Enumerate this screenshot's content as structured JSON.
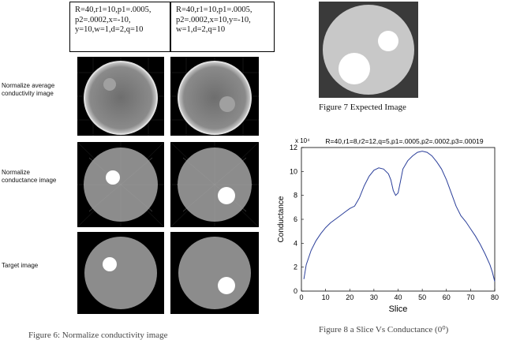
{
  "params": [
    "R=40,r1=10,p1=.0005,\np2=.0002,x=-10,\ny=10,w=1,d=2,q=10",
    "R=40,r1=10,p1=.0005,\np2=.0002,x=10,y=-10,\nw=1,d=2,q=10"
  ],
  "row_labels": [
    "Normalize average\nconductivity image",
    "Normalize\nconductance image",
    "Target image"
  ],
  "caption_fig6": "Figure 6: Normalize conductivity image",
  "caption_fig7": "Figure 7 Expected Image",
  "caption_fig8": "Figure 8 a Slice Vs Conductance (0⁰)",
  "chart_data": {
    "type": "line",
    "title": "R=40,r1=8,r2=12,q=5,p1=.0005,p2=.0002,p3=.00019",
    "xlabel": "Slice",
    "ylabel": "Conductance",
    "y_multiplier": "x 10⁴",
    "xlim": [
      0,
      80
    ],
    "ylim": [
      0,
      12
    ],
    "xticks": [
      "0",
      "10",
      "20",
      "30",
      "40",
      "50",
      "60",
      "70",
      "80"
    ],
    "yticks": [
      "0",
      "2",
      "4",
      "6",
      "8",
      "10",
      "12"
    ],
    "grid": false,
    "series": [
      {
        "color": "#2b3f9a",
        "x": [
          1,
          2,
          4,
          6,
          8,
          10,
          12,
          14,
          16,
          18,
          20,
          22,
          24,
          26,
          28,
          30,
          32,
          34,
          36,
          37,
          38,
          39,
          40,
          41,
          42,
          44,
          46,
          48,
          50,
          52,
          54,
          56,
          58,
          60,
          62,
          64,
          66,
          68,
          70,
          72,
          74,
          76,
          78,
          79,
          80
        ],
        "y": [
          1.0,
          2.2,
          3.4,
          4.2,
          4.8,
          5.3,
          5.7,
          6.0,
          6.3,
          6.6,
          6.9,
          7.1,
          7.8,
          8.8,
          9.6,
          10.1,
          10.3,
          10.2,
          9.8,
          9.3,
          8.4,
          8.0,
          8.2,
          9.2,
          10.2,
          10.9,
          11.3,
          11.6,
          11.7,
          11.6,
          11.3,
          10.8,
          10.2,
          9.3,
          8.2,
          7.1,
          6.3,
          5.8,
          5.2,
          4.6,
          3.9,
          3.1,
          2.2,
          1.6,
          0.8
        ]
      }
    ]
  }
}
